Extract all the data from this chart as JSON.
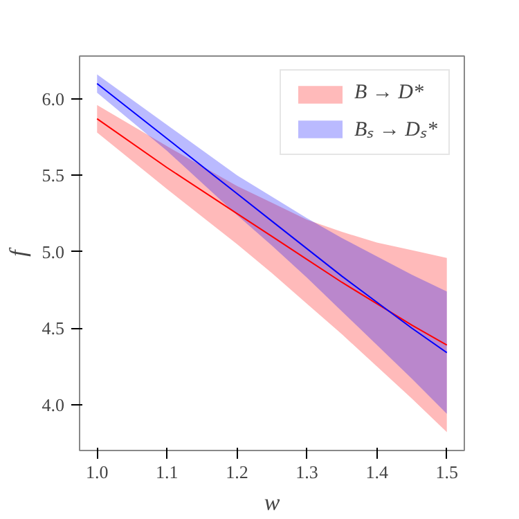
{
  "chart_data": {
    "type": "line",
    "xlabel": "w",
    "ylabel": "f",
    "x": [
      1.0,
      1.1,
      1.2,
      1.25,
      1.3,
      1.35,
      1.4,
      1.45,
      1.5
    ],
    "series": [
      {
        "name": "B → D*",
        "color": "#ff0000",
        "values": [
          5.87,
          5.55,
          5.25,
          5.1,
          4.95,
          4.8,
          4.66,
          4.52,
          4.39
        ],
        "lower": [
          5.78,
          5.41,
          5.05,
          4.86,
          4.66,
          4.46,
          4.25,
          4.04,
          3.82
        ],
        "upper": [
          5.96,
          5.69,
          5.43,
          5.32,
          5.21,
          5.13,
          5.06,
          5.01,
          4.96
        ]
      },
      {
        "name": "Bₛ → Dₛ*",
        "color": "#0000ff",
        "values": [
          6.1,
          5.74,
          5.38,
          5.2,
          5.02,
          4.84,
          4.67,
          4.5,
          4.34
        ],
        "lower": [
          6.04,
          5.66,
          5.24,
          5.04,
          4.83,
          4.61,
          4.39,
          4.17,
          3.94
        ],
        "upper": [
          6.16,
          5.83,
          5.5,
          5.36,
          5.22,
          5.09,
          4.97,
          4.85,
          4.74
        ]
      }
    ],
    "xlim": [
      0.975,
      1.525
    ],
    "ylim": [
      3.7,
      6.28
    ],
    "xticks": [
      {
        "value": 1.0,
        "label": "1.0"
      },
      1.1,
      1.2,
      1.3,
      1.4,
      1.5
    ],
    "yticks": [
      {
        "value": 4.0,
        "label": "4.0"
      },
      4.5,
      {
        "value": 5.0,
        "label": "5.0"
      },
      5.5,
      {
        "value": 6.0,
        "label": "6.0"
      }
    ],
    "legend": "top right",
    "grid": false,
    "marker": "none",
    "line_style": "solid"
  }
}
